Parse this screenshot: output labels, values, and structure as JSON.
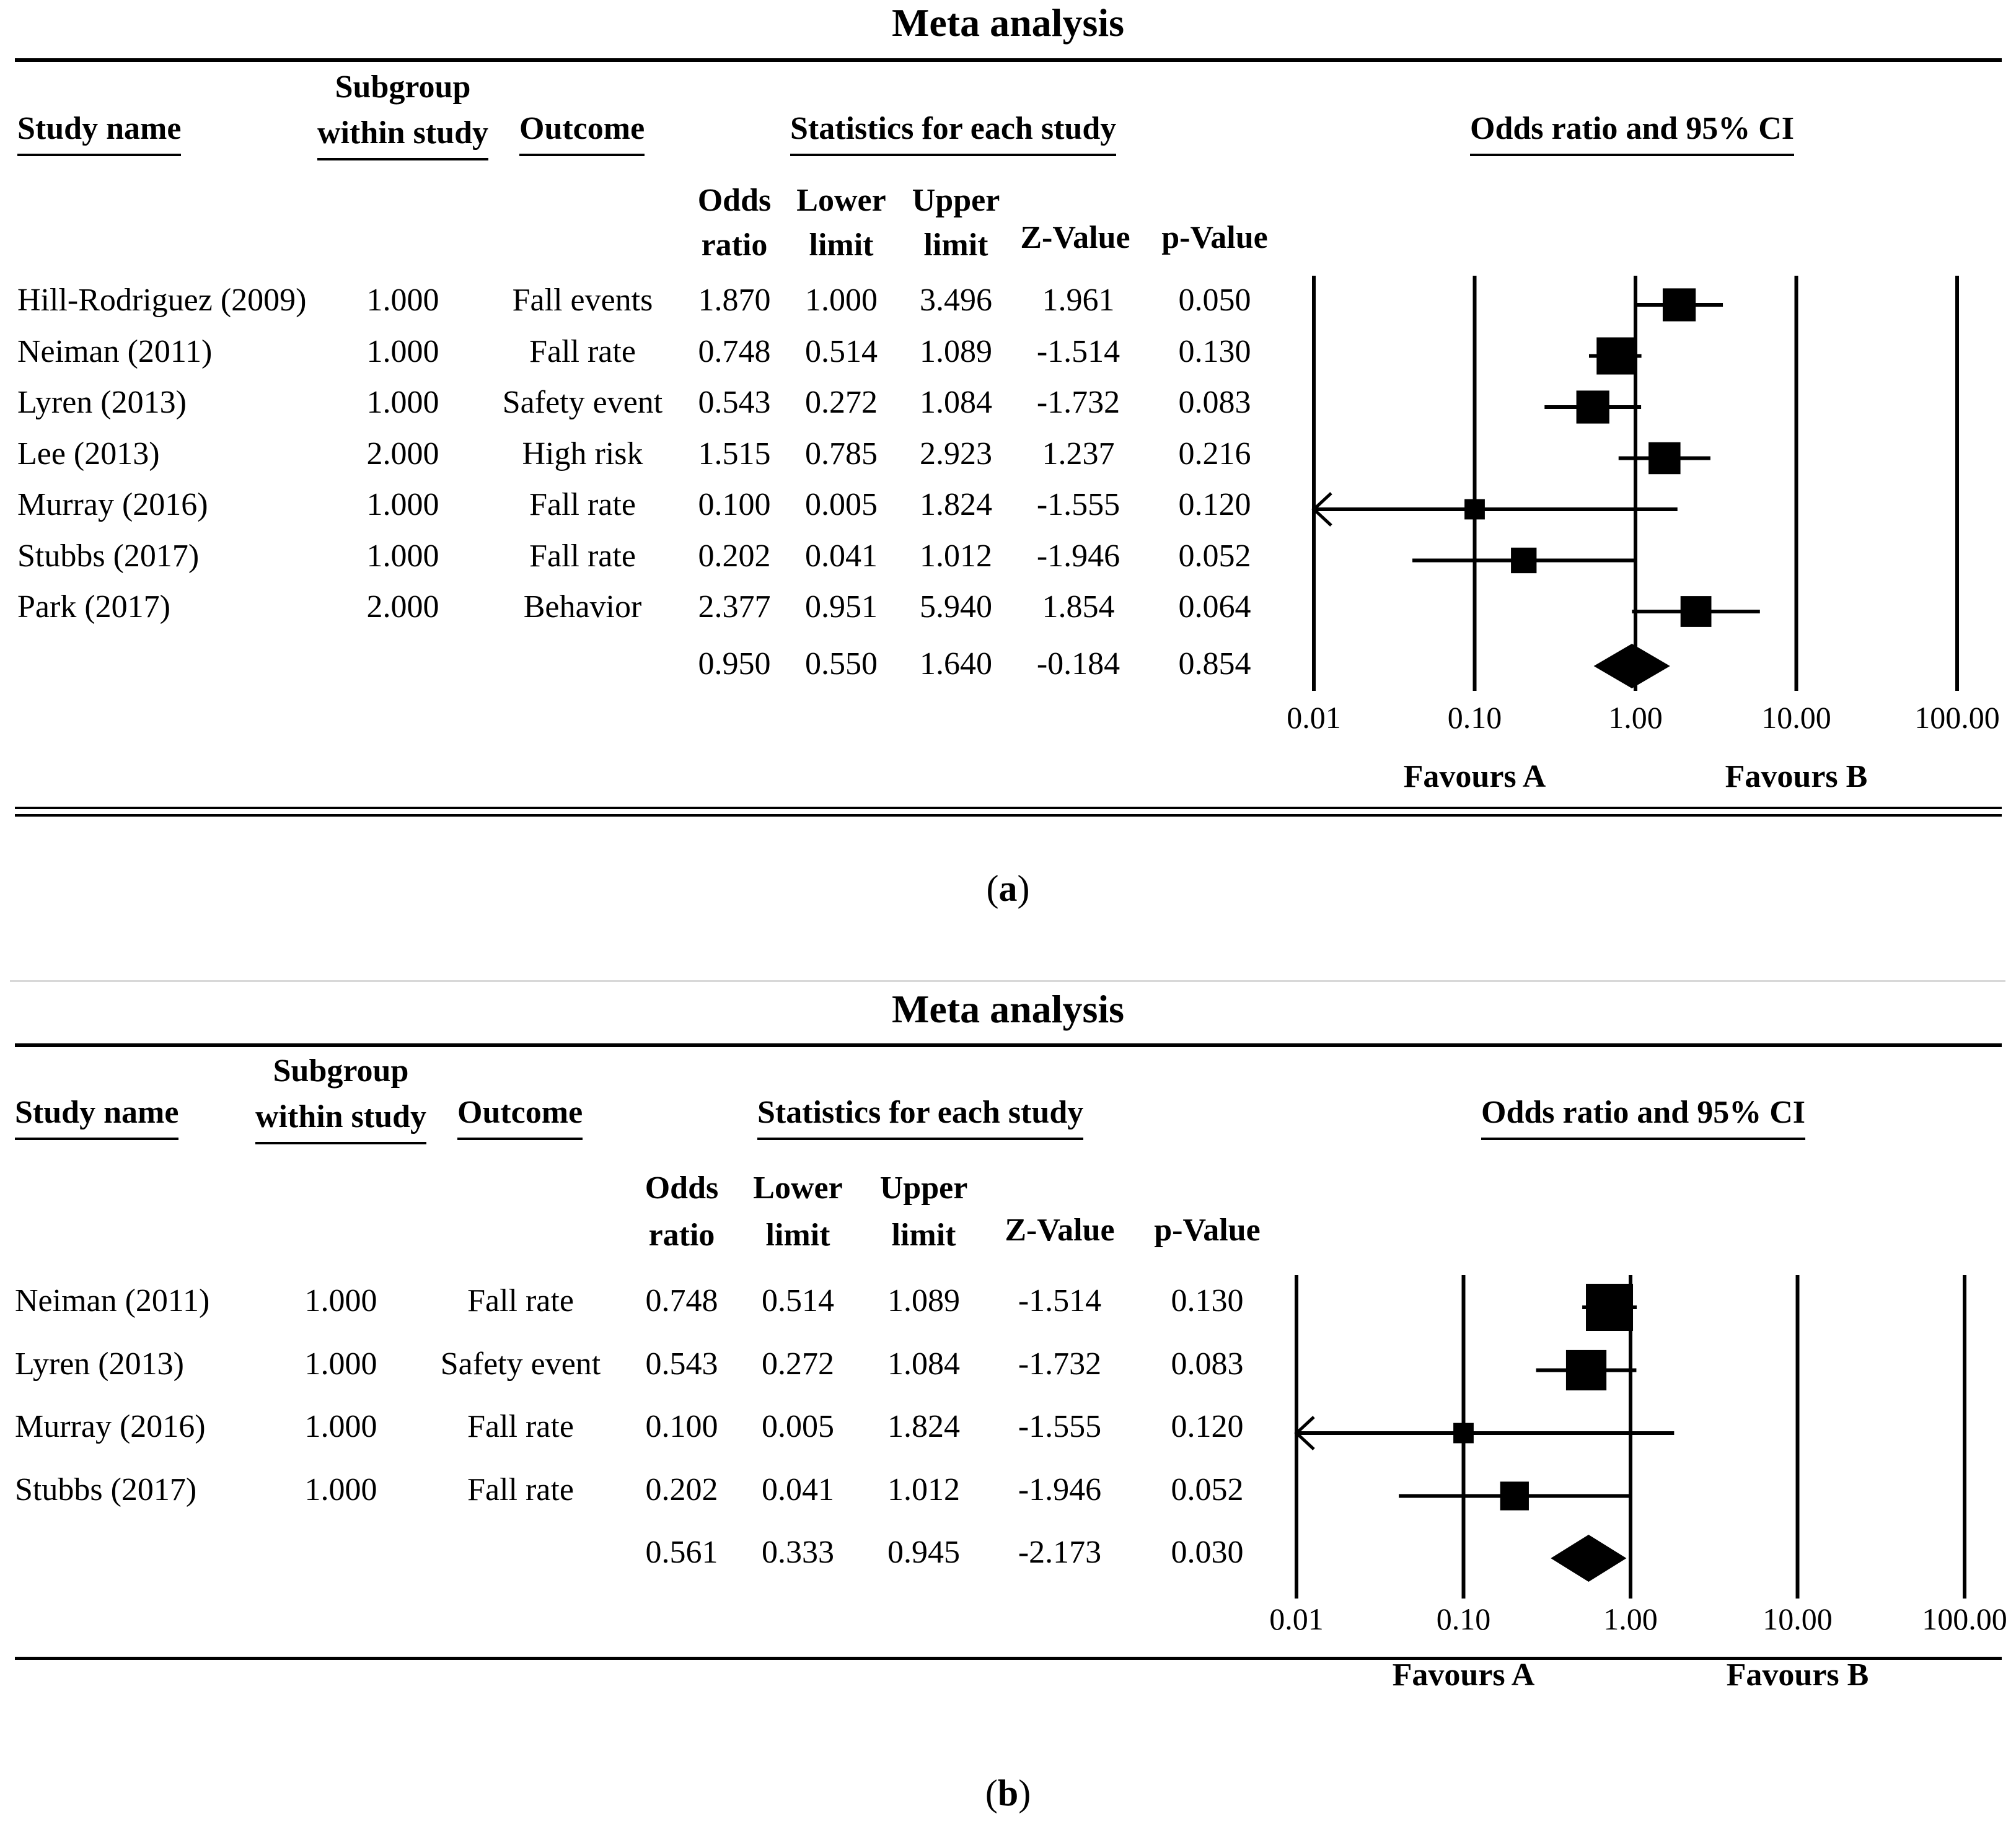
{
  "panels": [
    {
      "title": "Meta analysis",
      "headers": {
        "study_name": "Study name",
        "subgroup_line1": "Subgroup",
        "subgroup_line2": "within study",
        "outcome": "Outcome",
        "stats": "Statistics for each study",
        "plot": "Odds ratio and 95% CI",
        "odds_1": "Odds",
        "odds_2": "ratio",
        "lower_1": "Lower",
        "lower_2": "limit",
        "upper_1": "Upper",
        "upper_2": "limit",
        "z": "Z-Value",
        "p": "p-Value"
      },
      "rows": [
        {
          "study": "Hill-Rodriguez (2009)",
          "subgroup": "1.000",
          "outcome": "Fall events",
          "or": "1.870",
          "lower": "1.000",
          "upper": "3.496",
          "z": "1.961",
          "p": "0.050"
        },
        {
          "study": "Neiman (2011)",
          "subgroup": "1.000",
          "outcome": "Fall rate",
          "or": "0.748",
          "lower": "0.514",
          "upper": "1.089",
          "z": "-1.514",
          "p": "0.130"
        },
        {
          "study": "Lyren (2013)",
          "subgroup": "1.000",
          "outcome": "Safety event",
          "or": "0.543",
          "lower": "0.272",
          "upper": "1.084",
          "z": "-1.732",
          "p": "0.083"
        },
        {
          "study": "Lee (2013)",
          "subgroup": "2.000",
          "outcome": "High risk",
          "or": "1.515",
          "lower": "0.785",
          "upper": "2.923",
          "z": "1.237",
          "p": "0.216"
        },
        {
          "study": "Murray (2016)",
          "subgroup": "1.000",
          "outcome": "Fall rate",
          "or": "0.100",
          "lower": "0.005",
          "upper": "1.824",
          "z": "-1.555",
          "p": "0.120"
        },
        {
          "study": "Stubbs (2017)",
          "subgroup": "1.000",
          "outcome": "Fall rate",
          "or": "0.202",
          "lower": "0.041",
          "upper": "1.012",
          "z": "-1.946",
          "p": "0.052"
        },
        {
          "study": "Park (2017)",
          "subgroup": "2.000",
          "outcome": "Behavior",
          "or": "2.377",
          "lower": "0.951",
          "upper": "5.940",
          "z": "1.854",
          "p": "0.064"
        }
      ],
      "summary": {
        "or": "0.950",
        "lower": "0.550",
        "upper": "1.640",
        "z": "-0.184",
        "p": "0.854"
      },
      "favours_a": "Favours A",
      "favours_b": "Favours B",
      "caption_open": "(",
      "caption_letter": "a",
      "caption_close": ")"
    },
    {
      "title": "Meta analysis",
      "headers": {
        "study_name": "Study name",
        "subgroup_line1": "Subgroup",
        "subgroup_line2": "within study",
        "outcome": "Outcome",
        "stats": "Statistics for each study",
        "plot": "Odds ratio and 95% CI",
        "odds_1": "Odds",
        "odds_2": "ratio",
        "lower_1": "Lower",
        "lower_2": "limit",
        "upper_1": "Upper",
        "upper_2": "limit",
        "z": "Z-Value",
        "p": "p-Value"
      },
      "rows": [
        {
          "study": "Neiman (2011)",
          "subgroup": "1.000",
          "outcome": "Fall rate",
          "or": "0.748",
          "lower": "0.514",
          "upper": "1.089",
          "z": "-1.514",
          "p": "0.130"
        },
        {
          "study": "Lyren (2013)",
          "subgroup": "1.000",
          "outcome": "Safety event",
          "or": "0.543",
          "lower": "0.272",
          "upper": "1.084",
          "z": "-1.732",
          "p": "0.083"
        },
        {
          "study": "Murray (2016)",
          "subgroup": "1.000",
          "outcome": "Fall rate",
          "or": "0.100",
          "lower": "0.005",
          "upper": "1.824",
          "z": "-1.555",
          "p": "0.120"
        },
        {
          "study": "Stubbs (2017)",
          "subgroup": "1.000",
          "outcome": "Fall rate",
          "or": "0.202",
          "lower": "0.041",
          "upper": "1.012",
          "z": "-1.946",
          "p": "0.052"
        }
      ],
      "summary": {
        "or": "0.561",
        "lower": "0.333",
        "upper": "0.945",
        "z": "-2.173",
        "p": "0.030"
      },
      "favours_a": "Favours A",
      "favours_b": "Favours B",
      "caption_open": "(",
      "caption_letter": "b",
      "caption_close": ")"
    }
  ],
  "chart_data": [
    {
      "type": "forest",
      "title": "Meta analysis",
      "xlabel": "Odds ratio and 95% CI",
      "xscale": "log",
      "xlim": [
        0.01,
        100
      ],
      "ticks": [
        "0.01",
        "0.10",
        "1.00",
        "10.00",
        "100.00"
      ],
      "tick_values": [
        0.01,
        0.1,
        1,
        10,
        100
      ],
      "studies": [
        {
          "name": "Hill-Rodriguez (2009)",
          "or": 1.87,
          "lower": 1.0,
          "upper": 3.496,
          "weight": 0.8
        },
        {
          "name": "Neiman (2011)",
          "or": 0.748,
          "lower": 0.514,
          "upper": 1.089,
          "weight": 1.0
        },
        {
          "name": "Lyren (2013)",
          "or": 0.543,
          "lower": 0.272,
          "upper": 1.084,
          "weight": 0.8
        },
        {
          "name": "Lee (2013)",
          "or": 1.515,
          "lower": 0.785,
          "upper": 2.923,
          "weight": 0.75
        },
        {
          "name": "Murray (2016)",
          "or": 0.1,
          "lower": 0.005,
          "upper": 1.824,
          "weight": 0.2
        },
        {
          "name": "Stubbs (2017)",
          "or": 0.202,
          "lower": 0.041,
          "upper": 1.012,
          "weight": 0.45
        },
        {
          "name": "Park (2017)",
          "or": 2.377,
          "lower": 0.951,
          "upper": 5.94,
          "weight": 0.7
        }
      ],
      "summary": {
        "or": 0.95,
        "lower": 0.55,
        "upper": 1.64
      },
      "favours_left": "Favours A",
      "favours_right": "Favours B"
    },
    {
      "type": "forest",
      "title": "Meta analysis",
      "xlabel": "Odds ratio and 95% CI",
      "xscale": "log",
      "xlim": [
        0.01,
        100
      ],
      "ticks": [
        "0.01",
        "0.10",
        "1.00",
        "10.00",
        "100.00"
      ],
      "tick_values": [
        0.01,
        0.1,
        1,
        10,
        100
      ],
      "studies": [
        {
          "name": "Neiman (2011)",
          "or": 0.748,
          "lower": 0.514,
          "upper": 1.089,
          "weight": 1.0
        },
        {
          "name": "Lyren (2013)",
          "or": 0.543,
          "lower": 0.272,
          "upper": 1.084,
          "weight": 0.8
        },
        {
          "name": "Murray (2016)",
          "or": 0.1,
          "lower": 0.005,
          "upper": 1.824,
          "weight": 0.2
        },
        {
          "name": "Stubbs (2017)",
          "or": 0.202,
          "lower": 0.041,
          "upper": 1.012,
          "weight": 0.45
        }
      ],
      "summary": {
        "or": 0.561,
        "lower": 0.333,
        "upper": 0.945
      },
      "favours_left": "Favours A",
      "favours_right": "Favours B"
    }
  ]
}
